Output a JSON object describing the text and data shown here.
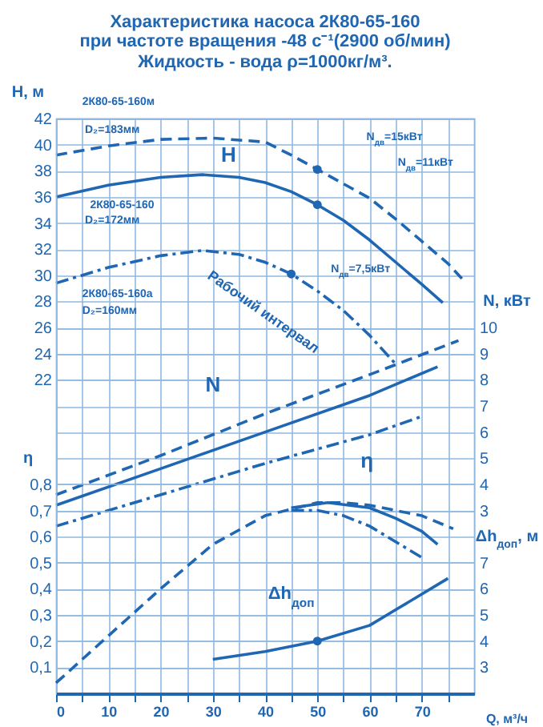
{
  "chart_data": [
    {
      "type": "line",
      "title": "Характеристика насоса 2К80-65-160",
      "subtitle": "при частоте вращения -48 с⁻¹(2900 об/мин)\nЖидкость - вода ρ=1000кг/м³.",
      "xlabel": "Q, м³/ч",
      "ylabel": "H, м",
      "y2label": "N, кВт",
      "xlim": [
        0,
        80
      ],
      "xticks": [
        0,
        {
          "value": 5,
          "label": null
        },
        10,
        {
          "value": 15,
          "label": null
        },
        20,
        {
          "value": 25,
          "label": null
        },
        30,
        {
          "value": 35,
          "label": null
        },
        40,
        {
          "value": 45,
          "label": null
        },
        50,
        {
          "value": 55,
          "label": null
        },
        60,
        {
          "value": 65,
          "label": null
        },
        70,
        {
          "value": 75,
          "label": null
        }
      ],
      "ylim": [
        -2,
        42
      ],
      "yticks": [
        22,
        24,
        26,
        28,
        30,
        32,
        34,
        36,
        38,
        40,
        42
      ],
      "y2lim": [
        -4,
        18
      ],
      "y2ticks": [
        3,
        4,
        5,
        6,
        7,
        8,
        9,
        10
      ],
      "grid": true,
      "annotations": [
        "2К80-65-160м",
        "D₂=183мм",
        "2К80-65-160",
        "D₂=172мм",
        "2К80-65-160а",
        "D₂=160мм",
        "H",
        "N$_{дв}$=15кВт",
        "N$_{дв}$=11кВт",
        "N$_{дв}$=7,5кВт",
        "Рабочий интервал",
        "N"
      ],
      "series": [
        {
          "line_style": "dashed",
          "color": "#1f66b3",
          "x": [
            0,
            10,
            20,
            30,
            40,
            45,
            50,
            55,
            60,
            65,
            70,
            75,
            78
          ],
          "values": [
            39.2,
            39.9,
            40.4,
            40.5,
            40.2,
            39.2,
            38.1,
            37.0,
            35.9,
            34.3,
            32.6,
            30.9,
            29.6
          ]
        },
        {
          "line_style": "solid",
          "color": "#1f66b3",
          "x": [
            0,
            10,
            20,
            28,
            35,
            40,
            45,
            50,
            55,
            60,
            65,
            70,
            74
          ],
          "values": [
            36,
            36.9,
            37.5,
            37.7,
            37.5,
            37.1,
            36.4,
            35.4,
            34.2,
            32.7,
            31,
            29.3,
            27.9
          ]
        },
        {
          "line_style": "dashdot",
          "color": "#1f66b3",
          "x": [
            0,
            10,
            20,
            28,
            35,
            40,
            45,
            50,
            55,
            60,
            65
          ],
          "values": [
            29.4,
            30.6,
            31.5,
            31.9,
            31.6,
            31,
            30.1,
            28.8,
            27.3,
            25.4,
            23.2
          ]
        },
        {
          "type": "scatter",
          "marker": "circle",
          "color": "#1f66b3",
          "x": [
            50,
            50,
            45
          ],
          "values": [
            38.1,
            35.4,
            30.1
          ]
        },
        {
          "axis": "y2",
          "line_style": "dashed",
          "color": "#1f66b3",
          "x": [
            0,
            20,
            40,
            60,
            77
          ],
          "values": [
            3.6,
            5.1,
            6.7,
            8.2,
            9.5
          ]
        },
        {
          "axis": "y2",
          "line_style": "solid",
          "color": "#1f66b3",
          "x": [
            0,
            20,
            40,
            60,
            73
          ],
          "values": [
            3.2,
            4.6,
            6.0,
            7.4,
            8.5
          ]
        },
        {
          "axis": "y2",
          "line_style": "dashdot",
          "color": "#1f66b3",
          "x": [
            0,
            20,
            40,
            60,
            70
          ],
          "values": [
            2.4,
            3.6,
            4.8,
            5.9,
            6.6
          ]
        }
      ]
    },
    {
      "type": "line",
      "ylabel": "η",
      "y2label": "Δh$_{доп}$, м",
      "tick_labels": "y",
      "xlim": [
        0,
        80
      ],
      "ylim": [
        0,
        2.2
      ],
      "yticks": [
        {
          "value": 0.1,
          "label": "0,1"
        },
        {
          "value": 0.2,
          "label": "0,2"
        },
        {
          "value": 0.3,
          "label": "0,3"
        },
        {
          "value": 0.4,
          "label": "0,4"
        },
        {
          "value": 0.5,
          "label": "0,5"
        },
        {
          "value": 0.6,
          "label": "0,6"
        },
        {
          "value": 0.7,
          "label": "0,7"
        },
        {
          "value": 0.8,
          "label": "0,8"
        }
      ],
      "y2lim": [
        2,
        24
      ],
      "y2ticks": [
        3,
        4,
        5,
        6,
        7
      ],
      "grid": "y",
      "annotations": [
        "η",
        "Δh$_{доп}$"
      ],
      "series": [
        {
          "line_style": "dashed",
          "color": "#1f66b3",
          "x": [
            0,
            10,
            20,
            30,
            40,
            50,
            55,
            60,
            70,
            76
          ],
          "values": [
            0.04,
            0.22,
            0.4,
            0.57,
            0.68,
            0.73,
            0.73,
            0.72,
            0.68,
            0.63
          ]
        },
        {
          "line_style": "solid",
          "color": "#1f66b3",
          "x": [
            45,
            52,
            60,
            65,
            70,
            73
          ],
          "values": [
            0.71,
            0.73,
            0.71,
            0.67,
            0.62,
            0.57
          ]
        },
        {
          "line_style": "dashdot",
          "color": "#1f66b3",
          "x": [
            45,
            50,
            55,
            60,
            65,
            70
          ],
          "values": [
            0.7,
            0.7,
            0.68,
            0.64,
            0.58,
            0.52
          ]
        },
        {
          "axis": "y2",
          "line_style": "solid",
          "color": "#1f66b3",
          "x": [
            30,
            40,
            50,
            60,
            65,
            70,
            75
          ],
          "values": [
            3.3,
            3.6,
            4.0,
            4.6,
            5.2,
            5.8,
            6.4
          ]
        },
        {
          "axis": "y2",
          "type": "scatter",
          "marker": "circle",
          "color": "#1f66b3",
          "x": [
            50
          ],
          "values": [
            4.0
          ]
        }
      ]
    }
  ]
}
